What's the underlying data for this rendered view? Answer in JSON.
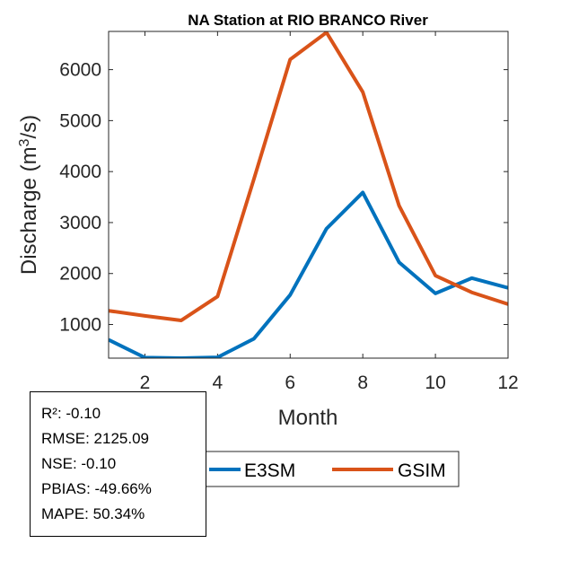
{
  "chart_data": {
    "type": "line",
    "title": "NA  Station at  RIO BRANCO  River",
    "xlabel": "Month",
    "ylabel_main": "Discharge (m",
    "ylabel_sup": "3",
    "ylabel_tail": "/s)",
    "xlim": [
      1,
      12
    ],
    "ylim": [
      340,
      6750
    ],
    "xticks": [
      2,
      4,
      6,
      8,
      10,
      12
    ],
    "yticks": [
      1000,
      2000,
      3000,
      4000,
      5000,
      6000
    ],
    "x": [
      1,
      2,
      3,
      4,
      5,
      6,
      7,
      8,
      9,
      10,
      11,
      12
    ],
    "series": [
      {
        "name": "E3SM",
        "color": "#0072BD",
        "values": [
          700,
          350,
          340,
          355,
          720,
          1580,
          2880,
          3590,
          2220,
          1610,
          1910,
          1720
        ]
      },
      {
        "name": "GSIM",
        "color": "#D95319",
        "values": [
          1270,
          1170,
          1080,
          1550,
          3850,
          6200,
          6730,
          5560,
          3330,
          1960,
          1630,
          1400
        ]
      }
    ],
    "legend": {
      "position": "bottom-right",
      "entries": [
        "E3SM",
        "GSIM"
      ]
    }
  },
  "stats": {
    "r2": "R²: -0.10",
    "rmse": "RMSE: 2125.09",
    "nse": "NSE: -0.10",
    "pbias": "PBIAS: -49.66%",
    "mape": "MAPE: 50.34%"
  }
}
